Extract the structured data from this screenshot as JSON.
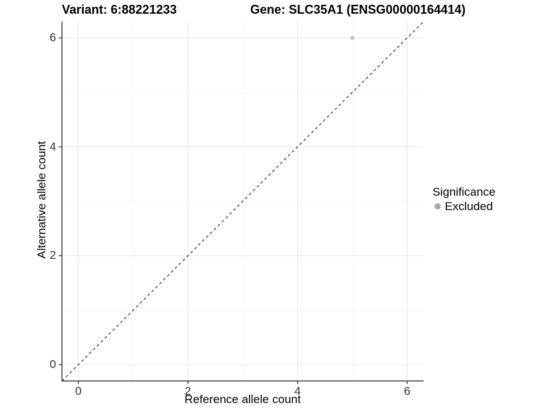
{
  "chart_data": {
    "type": "scatter",
    "title_left": "Variant: 6:88221233",
    "title_right": "Gene: SLC35A1 (ENSG00000164414)",
    "xlabel": "Reference allele count",
    "ylabel": "Alternative allele count",
    "xlim": [
      -0.3,
      6.3
    ],
    "ylim": [
      -0.3,
      6.3
    ],
    "x_ticks": [
      0,
      2,
      4,
      6
    ],
    "y_ticks": [
      0,
      2,
      4,
      6
    ],
    "x_minor_gridlines": [
      1,
      3,
      5
    ],
    "y_minor_gridlines": [
      1,
      3,
      5
    ],
    "grid": "major and minor gridlines, light gray on white",
    "identity_line": {
      "equation": "y = x",
      "style": "dashed",
      "color": "#000000"
    },
    "series": [
      {
        "name": "Excluded",
        "marker": "circle",
        "color": "#bdbdbd",
        "points": [
          [
            5,
            6
          ]
        ]
      }
    ],
    "legend": {
      "title": "Significance",
      "position": "right",
      "entries": [
        {
          "label": "Excluded",
          "color": "#a6a6a6"
        }
      ]
    }
  },
  "style": {
    "axis_color": "#333333",
    "grid_major_color": "#e7e7e7",
    "grid_minor_color": "#f2f2f2",
    "tick_length": 4.5,
    "point_radius": 2.7
  }
}
